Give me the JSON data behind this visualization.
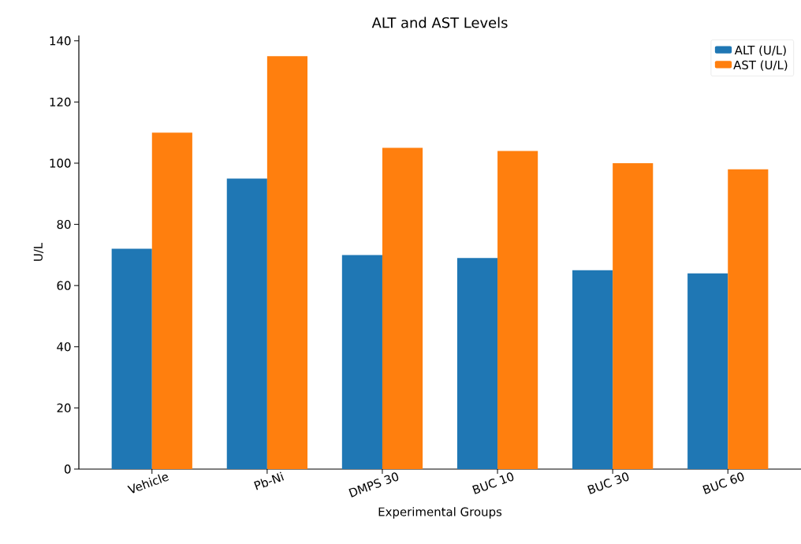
{
  "chart_data": {
    "type": "bar",
    "title": "ALT and AST Levels",
    "xlabel": "Experimental Groups",
    "ylabel": "U/L",
    "categories": [
      "Vehicle",
      "Pb-Ni",
      "DMPS 30",
      "BUC 10",
      "BUC 30",
      "BUC 60"
    ],
    "series": [
      {
        "name": "ALT (U/L)",
        "color": "#1f77b4",
        "values": [
          72,
          95,
          70,
          69,
          65,
          64
        ]
      },
      {
        "name": "AST (U/L)",
        "color": "#ff7f0e",
        "values": [
          110,
          135,
          105,
          104,
          100,
          98
        ]
      }
    ],
    "ylim": [
      0,
      141.75
    ],
    "yticks": [
      0,
      20,
      40,
      60,
      80,
      100,
      120,
      140
    ],
    "legend": "top right",
    "grid": false
  }
}
